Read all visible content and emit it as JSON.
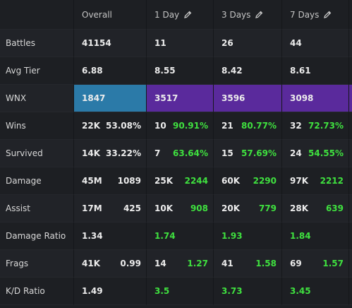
{
  "columns": [
    "Overall",
    "1 Day",
    "3 Days",
    "7 Days"
  ],
  "rows": [
    {
      "label": "Battles",
      "cells": [
        [
          "41154"
        ],
        [
          "11"
        ],
        [
          "26"
        ],
        [
          "44"
        ]
      ]
    },
    {
      "label": "Avg Tier",
      "cells": [
        [
          "6.88"
        ],
        [
          "8.55"
        ],
        [
          "8.42"
        ],
        [
          "8.61"
        ]
      ]
    },
    {
      "label": "WNX",
      "cells": [
        [
          "1847"
        ],
        [
          "3517"
        ],
        [
          "3596"
        ],
        [
          "3098"
        ]
      ],
      "colors": [
        "#2b7aa8",
        "#5a2a9c",
        "#5a2a9c",
        "#5a2a9c"
      ]
    },
    {
      "label": "Wins",
      "cells": [
        [
          "22K",
          "53.08%"
        ],
        [
          "10",
          "90.91%"
        ],
        [
          "21",
          "80.77%"
        ],
        [
          "32",
          "72.73%"
        ]
      ],
      "day_color": "#3fe03f"
    },
    {
      "label": "Survived",
      "cells": [
        [
          "14K",
          "33.22%"
        ],
        [
          "7",
          "63.64%"
        ],
        [
          "15",
          "57.69%"
        ],
        [
          "24",
          "54.55%"
        ]
      ],
      "day_color": "#3fe03f"
    },
    {
      "label": "Damage",
      "cells": [
        [
          "45M",
          "1089"
        ],
        [
          "25K",
          "2244"
        ],
        [
          "60K",
          "2290"
        ],
        [
          "97K",
          "2212"
        ]
      ],
      "day_color": "#3fe03f"
    },
    {
      "label": "Assist",
      "cells": [
        [
          "17M",
          "425"
        ],
        [
          "10K",
          "908"
        ],
        [
          "20K",
          "779"
        ],
        [
          "28K",
          "639"
        ]
      ],
      "day_color": "#3fe03f"
    },
    {
      "label": "Damage Ratio",
      "cells": [
        [
          "1.34"
        ],
        [
          "1.74"
        ],
        [
          "1.93"
        ],
        [
          "1.84"
        ]
      ],
      "day_color": "#3fe03f"
    },
    {
      "label": "Frags",
      "cells": [
        [
          "41K",
          "0.99"
        ],
        [
          "14",
          "1.27"
        ],
        [
          "41",
          "1.58"
        ],
        [
          "69",
          "1.57"
        ]
      ],
      "day_color": "#3fe03f"
    },
    {
      "label": "K/D Ratio",
      "cells": [
        [
          "1.49"
        ],
        [
          "3.5"
        ],
        [
          "3.73"
        ],
        [
          "3.45"
        ]
      ],
      "day_color": "#3fe03f"
    }
  ]
}
